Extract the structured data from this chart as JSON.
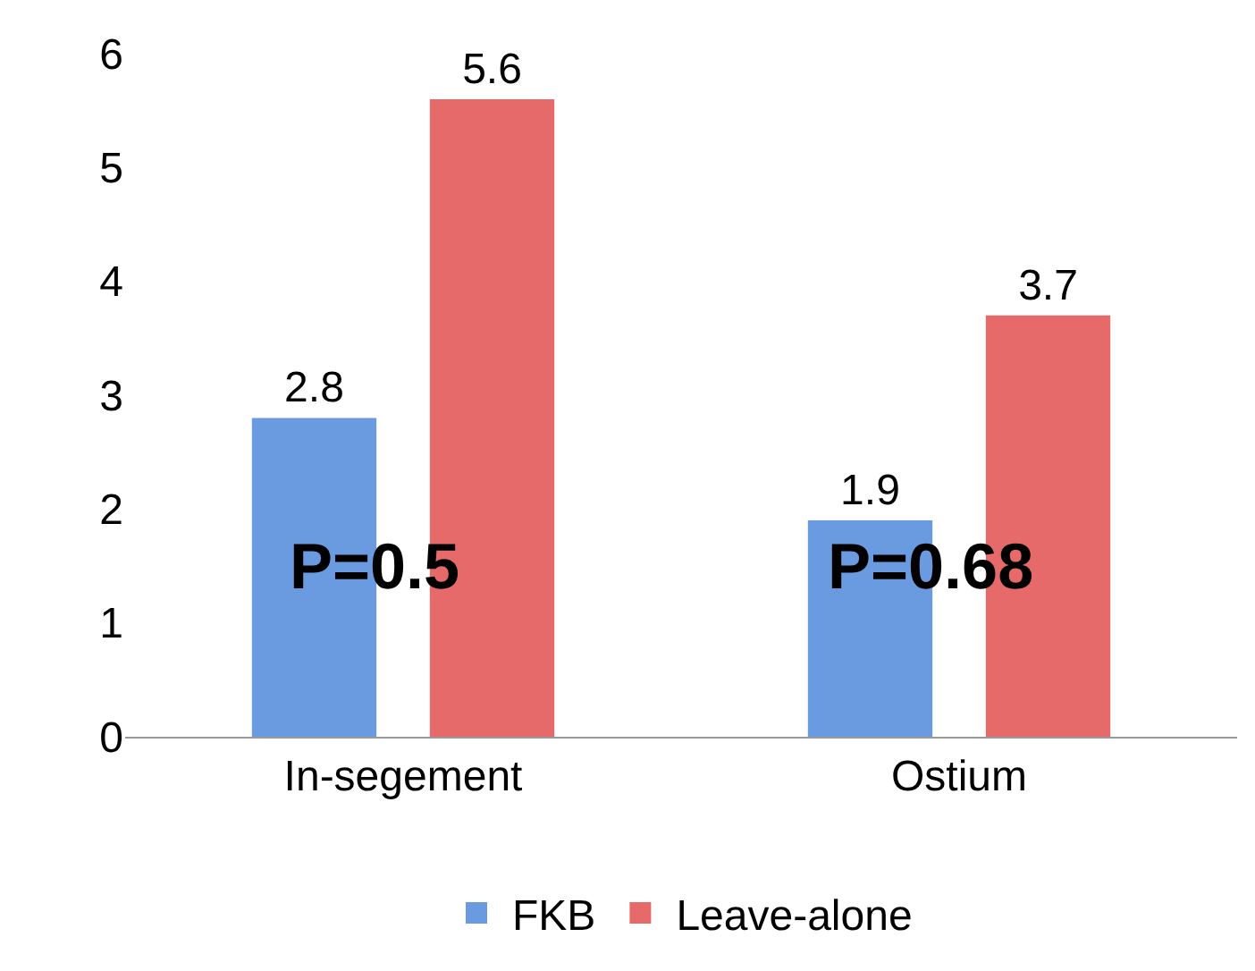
{
  "chart_data": {
    "type": "bar",
    "categories": [
      "In-segement",
      "Ostium"
    ],
    "series": [
      {
        "name": "FKB",
        "color": "#6a9be0",
        "values": [
          2.8,
          1.9
        ]
      },
      {
        "name": "Leave-alone",
        "color": "#e66a6a",
        "values": [
          5.6,
          3.7
        ]
      }
    ],
    "ylim": [
      0,
      6
    ],
    "yticks": [
      0,
      1,
      2,
      3,
      4,
      5,
      6
    ],
    "grid": false,
    "legend": "bottom",
    "data_labels": true,
    "annotations": [
      "P=0.5",
      "P=0.68"
    ]
  }
}
